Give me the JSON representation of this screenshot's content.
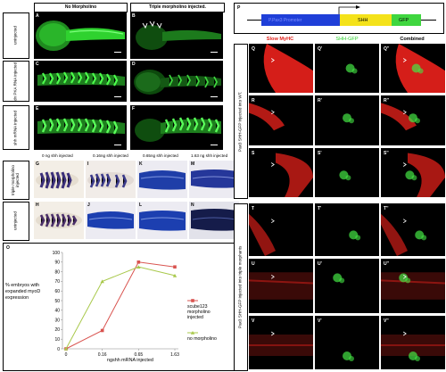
{
  "headers": {
    "no_morpholino": "No Morpholino",
    "triple_morpholino": "Triple morpholino injected."
  },
  "fluor_rows": [
    "uninjected",
    "dn PKA RNA injected",
    "shh mRNA injected"
  ],
  "fluor_panels": [
    "A",
    "B",
    "C",
    "D",
    "E",
    "F"
  ],
  "ish_headers": [
    "0 ng shh injected",
    "0.16ng shh injected",
    "0.65ng shh injected",
    "1.63 ng shh injected"
  ],
  "ish_rows": [
    "triple morpholino injected",
    "uninjected"
  ],
  "ish_panels_top": [
    "G",
    "I",
    "K",
    "M"
  ],
  "ish_panels_bottom": [
    "H",
    "J",
    "L",
    "N"
  ],
  "chart_panel": "O",
  "chart_data": {
    "type": "line",
    "ylabel": "% embryos with expanded myoD expression",
    "xlabel": "ngshh mRNA injected",
    "categories": [
      "0",
      "0.16",
      "0.65",
      "1.63"
    ],
    "ylim": [
      0,
      100
    ],
    "yticks": [
      0,
      10,
      20,
      30,
      40,
      50,
      60,
      70,
      80,
      90,
      100
    ],
    "grid": false,
    "legend_position": "right",
    "series": [
      {
        "name": "scube123 morpholino injected",
        "values": [
          0,
          19,
          90,
          85
        ],
        "color": "#d9534f"
      },
      {
        "name": "no morpholino",
        "values": [
          0,
          70,
          85,
          76
        ],
        "color": "#a8c84a"
      }
    ]
  },
  "construct": {
    "panel": "P",
    "promoter": "P.Pax3 Promoter",
    "gene": "SHH",
    "reporter": "GFP",
    "colors": {
      "promoter": "#1f3fd8",
      "gene": "#f4e21a",
      "reporter": "#3fd63f"
    }
  },
  "confocal_headers": {
    "slow": "Slow MyHC",
    "shh": "SHH-GFP",
    "combined": "Combined"
  },
  "confocal_side_labels": [
    "Pax3 SHH-GFP injected into WT.",
    "Pax3 SHH-GFP injected into triple morphants"
  ],
  "confocal_panels": [
    [
      "Q",
      "Q'",
      "Q''"
    ],
    [
      "R",
      "R'",
      "R''"
    ],
    [
      "S",
      "S'",
      "S''"
    ],
    [
      "T",
      "T'",
      "T''"
    ],
    [
      "U",
      "U'",
      "U''"
    ],
    [
      "V",
      "V'",
      "V''"
    ]
  ],
  "colors": {
    "red": "#e0201a",
    "green": "#2fd22f",
    "gfp": "#55ee55"
  }
}
